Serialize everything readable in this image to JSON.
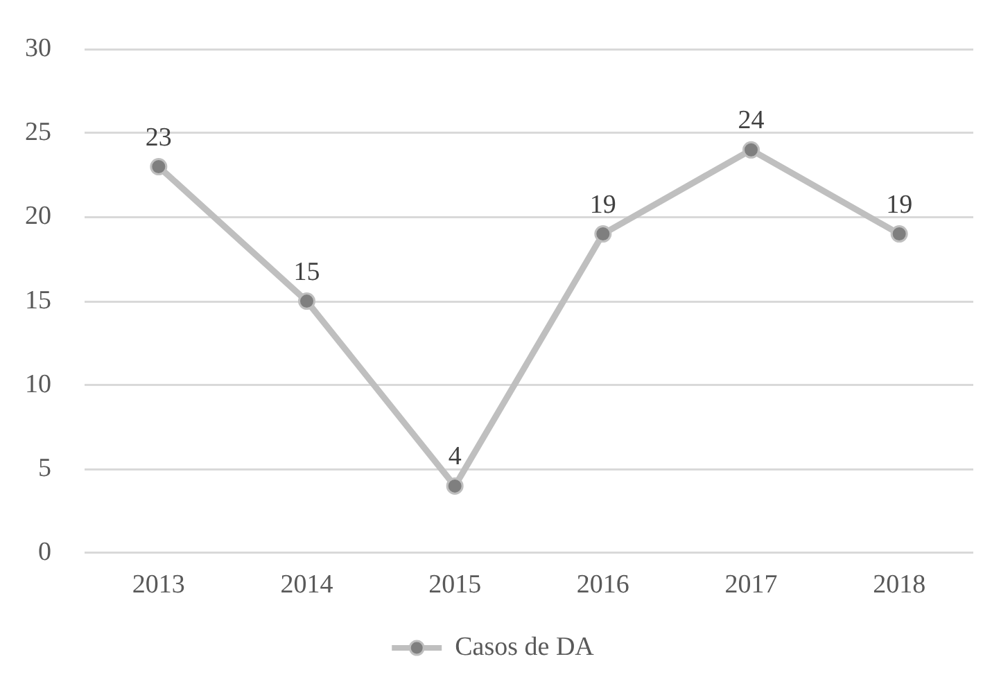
{
  "chart_data": {
    "type": "line",
    "categories": [
      "2013",
      "2014",
      "2015",
      "2016",
      "2017",
      "2018"
    ],
    "series": [
      {
        "name": "Casos de DA",
        "color": "#bfbfbf",
        "values": [
          23,
          15,
          4,
          19,
          24,
          19
        ]
      }
    ],
    "ylim": [
      0,
      30
    ],
    "yticks": [
      0,
      5,
      10,
      15,
      20,
      25,
      30
    ],
    "grid": "y",
    "legend": "bottom",
    "marker": "circle",
    "line_style": "solid",
    "data_labels": true
  }
}
